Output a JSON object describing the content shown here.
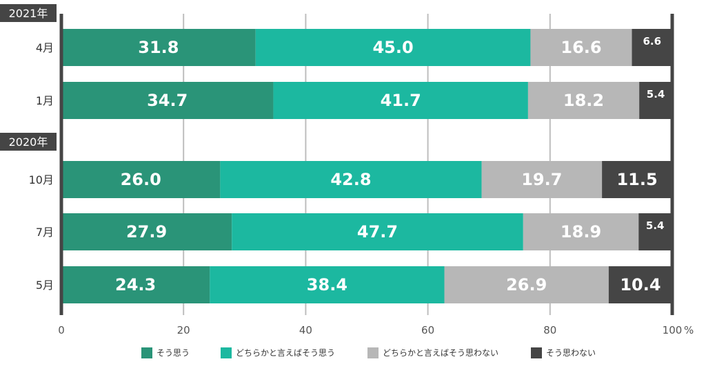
{
  "chart_data": {
    "type": "bar",
    "orientation": "horizontal",
    "stacked": true,
    "axis_unit": "%",
    "xlim": [
      0,
      100
    ],
    "x_ticks": [
      "0",
      "20",
      "40",
      "60",
      "80",
      "100"
    ],
    "grid": true,
    "legend_position": "bottom",
    "groups": [
      {
        "label": "2021年",
        "rows": [
          "4月",
          "1月"
        ]
      },
      {
        "label": "2020年",
        "rows": [
          "10月",
          "7月",
          "5月"
        ]
      }
    ],
    "categories": [
      "4月",
      "1月",
      "10月",
      "7月",
      "5月"
    ],
    "series": [
      {
        "name": "そう思う",
        "color": "#2a9478",
        "values": [
          31.8,
          34.7,
          26.0,
          27.9,
          24.3
        ]
      },
      {
        "name": "どちらかと言えばそう思う",
        "color": "#1cb8a0",
        "values": [
          45.0,
          41.7,
          42.8,
          47.7,
          38.4
        ]
      },
      {
        "name": "どちらかと言えばそう思わない",
        "color": "#b7b7b7",
        "values": [
          16.6,
          18.2,
          19.7,
          18.9,
          26.9
        ]
      },
      {
        "name": "そう思わない",
        "color": "#454545",
        "values": [
          6.6,
          5.4,
          11.5,
          5.4,
          10.4
        ]
      }
    ]
  }
}
